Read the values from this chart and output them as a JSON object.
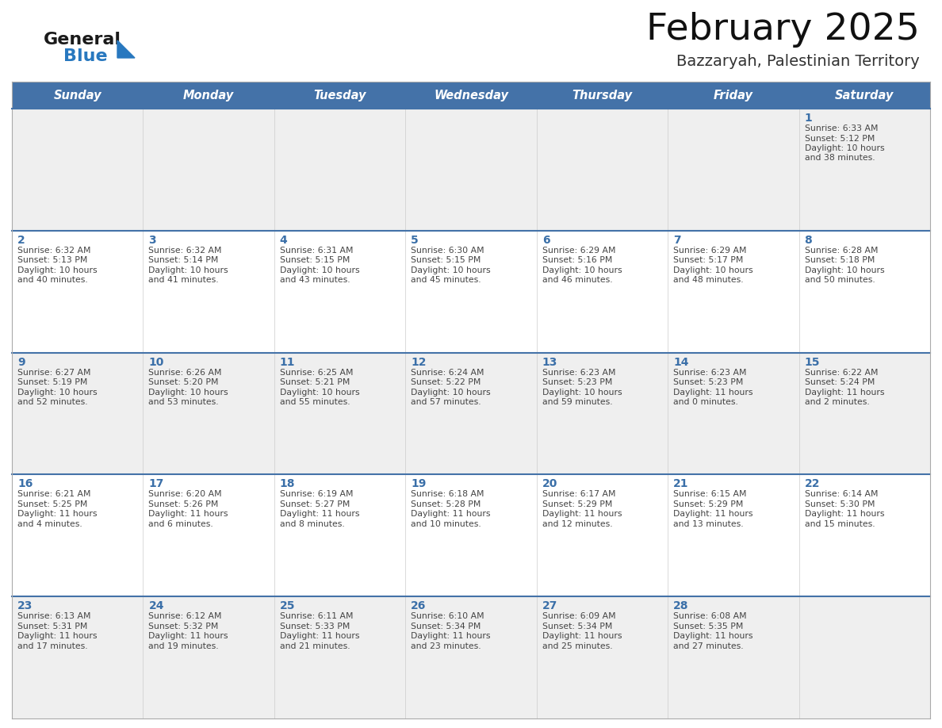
{
  "title": "February 2025",
  "subtitle": "Bazzaryah, Palestinian Territory",
  "header_bg": "#4472a8",
  "header_text_color": "#ffffff",
  "cell_bg_odd": "#efefef",
  "cell_bg_even": "#ffffff",
  "day_names": [
    "Sunday",
    "Monday",
    "Tuesday",
    "Wednesday",
    "Thursday",
    "Friday",
    "Saturday"
  ],
  "text_color": "#444444",
  "day_number_color": "#3a6fa8",
  "divider_color": "#4472a8",
  "logo_general_color": "#1a1a1a",
  "logo_blue_color": "#2878bf",
  "calendar_data": [
    [
      {
        "day": 0,
        "sunrise": "",
        "sunset": "",
        "daylight": ""
      },
      {
        "day": 0,
        "sunrise": "",
        "sunset": "",
        "daylight": ""
      },
      {
        "day": 0,
        "sunrise": "",
        "sunset": "",
        "daylight": ""
      },
      {
        "day": 0,
        "sunrise": "",
        "sunset": "",
        "daylight": ""
      },
      {
        "day": 0,
        "sunrise": "",
        "sunset": "",
        "daylight": ""
      },
      {
        "day": 0,
        "sunrise": "",
        "sunset": "",
        "daylight": ""
      },
      {
        "day": 1,
        "sunrise": "6:33 AM",
        "sunset": "5:12 PM",
        "daylight": "10 hours and 38 minutes."
      }
    ],
    [
      {
        "day": 2,
        "sunrise": "6:32 AM",
        "sunset": "5:13 PM",
        "daylight": "10 hours and 40 minutes."
      },
      {
        "day": 3,
        "sunrise": "6:32 AM",
        "sunset": "5:14 PM",
        "daylight": "10 hours and 41 minutes."
      },
      {
        "day": 4,
        "sunrise": "6:31 AM",
        "sunset": "5:15 PM",
        "daylight": "10 hours and 43 minutes."
      },
      {
        "day": 5,
        "sunrise": "6:30 AM",
        "sunset": "5:15 PM",
        "daylight": "10 hours and 45 minutes."
      },
      {
        "day": 6,
        "sunrise": "6:29 AM",
        "sunset": "5:16 PM",
        "daylight": "10 hours and 46 minutes."
      },
      {
        "day": 7,
        "sunrise": "6:29 AM",
        "sunset": "5:17 PM",
        "daylight": "10 hours and 48 minutes."
      },
      {
        "day": 8,
        "sunrise": "6:28 AM",
        "sunset": "5:18 PM",
        "daylight": "10 hours and 50 minutes."
      }
    ],
    [
      {
        "day": 9,
        "sunrise": "6:27 AM",
        "sunset": "5:19 PM",
        "daylight": "10 hours and 52 minutes."
      },
      {
        "day": 10,
        "sunrise": "6:26 AM",
        "sunset": "5:20 PM",
        "daylight": "10 hours and 53 minutes."
      },
      {
        "day": 11,
        "sunrise": "6:25 AM",
        "sunset": "5:21 PM",
        "daylight": "10 hours and 55 minutes."
      },
      {
        "day": 12,
        "sunrise": "6:24 AM",
        "sunset": "5:22 PM",
        "daylight": "10 hours and 57 minutes."
      },
      {
        "day": 13,
        "sunrise": "6:23 AM",
        "sunset": "5:23 PM",
        "daylight": "10 hours and 59 minutes."
      },
      {
        "day": 14,
        "sunrise": "6:23 AM",
        "sunset": "5:23 PM",
        "daylight": "11 hours and 0 minutes."
      },
      {
        "day": 15,
        "sunrise": "6:22 AM",
        "sunset": "5:24 PM",
        "daylight": "11 hours and 2 minutes."
      }
    ],
    [
      {
        "day": 16,
        "sunrise": "6:21 AM",
        "sunset": "5:25 PM",
        "daylight": "11 hours and 4 minutes."
      },
      {
        "day": 17,
        "sunrise": "6:20 AM",
        "sunset": "5:26 PM",
        "daylight": "11 hours and 6 minutes."
      },
      {
        "day": 18,
        "sunrise": "6:19 AM",
        "sunset": "5:27 PM",
        "daylight": "11 hours and 8 minutes."
      },
      {
        "day": 19,
        "sunrise": "6:18 AM",
        "sunset": "5:28 PM",
        "daylight": "11 hours and 10 minutes."
      },
      {
        "day": 20,
        "sunrise": "6:17 AM",
        "sunset": "5:29 PM",
        "daylight": "11 hours and 12 minutes."
      },
      {
        "day": 21,
        "sunrise": "6:15 AM",
        "sunset": "5:29 PM",
        "daylight": "11 hours and 13 minutes."
      },
      {
        "day": 22,
        "sunrise": "6:14 AM",
        "sunset": "5:30 PM",
        "daylight": "11 hours and 15 minutes."
      }
    ],
    [
      {
        "day": 23,
        "sunrise": "6:13 AM",
        "sunset": "5:31 PM",
        "daylight": "11 hours and 17 minutes."
      },
      {
        "day": 24,
        "sunrise": "6:12 AM",
        "sunset": "5:32 PM",
        "daylight": "11 hours and 19 minutes."
      },
      {
        "day": 25,
        "sunrise": "6:11 AM",
        "sunset": "5:33 PM",
        "daylight": "11 hours and 21 minutes."
      },
      {
        "day": 26,
        "sunrise": "6:10 AM",
        "sunset": "5:34 PM",
        "daylight": "11 hours and 23 minutes."
      },
      {
        "day": 27,
        "sunrise": "6:09 AM",
        "sunset": "5:34 PM",
        "daylight": "11 hours and 25 minutes."
      },
      {
        "day": 28,
        "sunrise": "6:08 AM",
        "sunset": "5:35 PM",
        "daylight": "11 hours and 27 minutes."
      },
      {
        "day": 0,
        "sunrise": "",
        "sunset": "",
        "daylight": ""
      }
    ]
  ]
}
